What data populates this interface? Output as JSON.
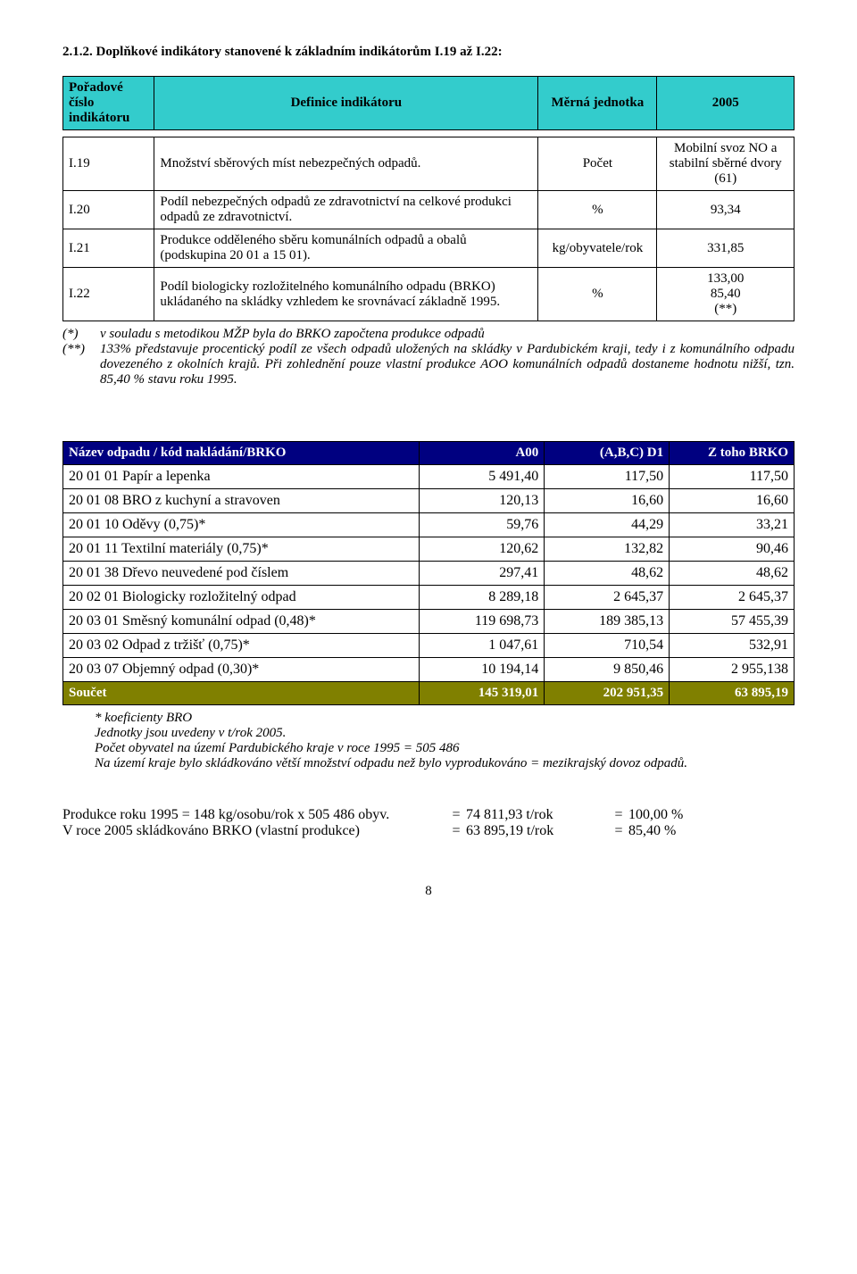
{
  "section_title": "2.1.2.   Doplňkové indikátory stanovené k základním indikátorům I.19 až I.22:",
  "table1": {
    "headers": [
      "Pořadové číslo indikátoru",
      "Definice indikátoru",
      "Měrná jednotka",
      "2005"
    ],
    "header_bg": "#33cccc",
    "rows": [
      {
        "id": "I.19",
        "def": "Množství sběrových míst nebezpečných odpadů.",
        "unit": "Počet",
        "val": "Mobilní svoz NO a stabilní sběrné dvory (61)"
      },
      {
        "id": "I.20",
        "def": "Podíl nebezpečných odpadů ze zdravotnictví na celkové produkci odpadů ze zdravotnictví.",
        "unit": "%",
        "val": "93,34"
      },
      {
        "id": "I.21",
        "def": "Produkce odděleného sběru komunálních odpadů a obalů (podskupina 20 01 a 15 01).",
        "unit": "kg/obyvatele/rok",
        "val": "331,85"
      },
      {
        "id": "I.22",
        "def": "Podíl biologicky rozložitelného komunálního odpadu (BRKO) ukládaného na skládky vzhledem ke srovnávací základně 1995.",
        "unit": "%",
        "val": "133,00\n85,40\n(**)"
      }
    ]
  },
  "footnotes1": [
    {
      "tag": "(*)",
      "text": "v souladu s metodikou MŽP byla do BRKO započtena  produkce odpadů"
    },
    {
      "tag": "(**)",
      "text": "133% představuje procentický podíl ze všech odpadů uložených na skládky v Pardubickém kraji, tedy i z komunálního odpadu dovezeného z okolních krajů. Při zohlednění pouze vlastní produkce AOO komunálních odpadů  dostaneme hodnotu nižší, tzn. 85,40 % stavu roku 1995."
    }
  ],
  "table2": {
    "headers": [
      "Název odpadu / kód nakládání/BRKO",
      "A00",
      "(A,B,C) D1",
      "Z toho BRKO"
    ],
    "header_bg": "#000080",
    "header_fg": "#ffffff",
    "rows": [
      [
        "20 01 01 Papír a lepenka",
        "5 491,40",
        "117,50",
        "117,50"
      ],
      [
        "20 01 08 BRO z kuchyní a stravoven",
        "120,13",
        "16,60",
        "16,60"
      ],
      [
        "20 01 10 Oděvy (0,75)*",
        "59,76",
        "44,29",
        "33,21"
      ],
      [
        "20 01 11 Textilní materiály (0,75)*",
        "120,62",
        "132,82",
        "90,46"
      ],
      [
        "20 01 38 Dřevo neuvedené pod číslem",
        "297,41",
        "48,62",
        "48,62"
      ],
      [
        "20 02 01 Biologicky rozložitelný odpad",
        "8 289,18",
        "2 645,37",
        "2 645,37"
      ],
      [
        "20 03 01 Směsný komunální odpad  (0,48)*",
        "119 698,73",
        "189 385,13",
        "57 455,39"
      ],
      [
        "20 03 02 Odpad z tržišť (0,75)*",
        "1 047,61",
        "710,54",
        "532,91"
      ],
      [
        "20 03 07 Objemný odpad  (0,30)*",
        "10 194,14",
        "9 850,46",
        "2 955,138"
      ]
    ],
    "sum_label": "Součet",
    "sum": [
      "145 319,01",
      "202 951,35",
      "63 895,19"
    ],
    "sum_bg": "#808000",
    "sum_fg": "#ffffff"
  },
  "notes2": [
    "* koeficienty BRO",
    "Jednotky jsou uvedeny v t/rok 2005.",
    "Počet obyvatel na území Pardubického  kraje  v roce 1995 = 505 486",
    "Na území kraje bylo skládkováno větší množství odpadu než bylo vyprodukováno = mezikrajský dovoz odpadů."
  ],
  "calc": [
    {
      "lhs": "Produkce roku 1995 = 148 kg/osobu/rok x 505 486 obyv.",
      "mid": "74 811,93 t/rok",
      "rhs": "100,00 %"
    },
    {
      "lhs": "V roce 2005 skládkováno  BRKO (vlastní produkce)",
      "mid": "63 895,19 t/rok",
      "rhs": "85,40 %"
    }
  ],
  "page_number": "8"
}
